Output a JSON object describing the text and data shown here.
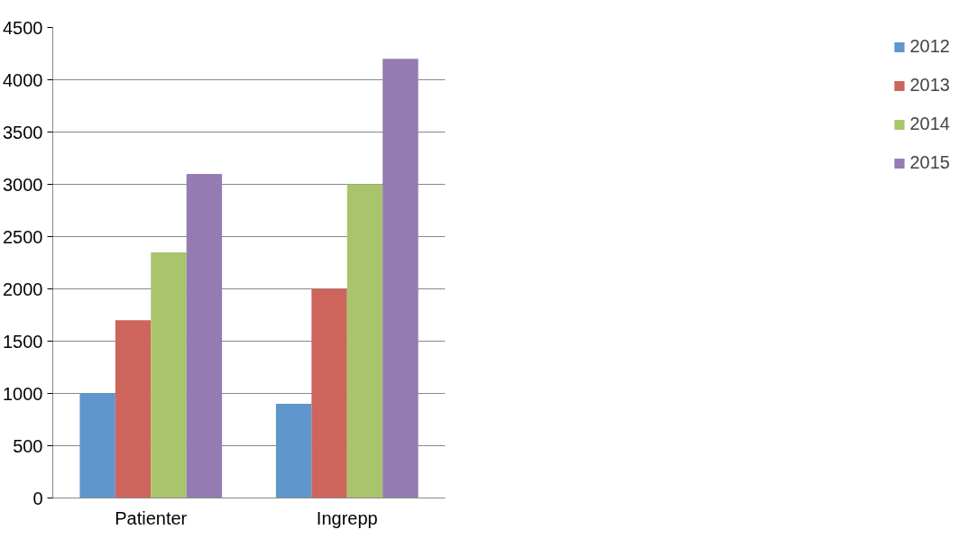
{
  "chart_data": {
    "type": "bar",
    "categories": [
      "Patienter",
      "Ingrepp"
    ],
    "series": [
      {
        "name": "2012",
        "color": "#5f96cc",
        "values": [
          1000,
          900
        ]
      },
      {
        "name": "2013",
        "color": "#cd655d",
        "values": [
          1700,
          2000
        ]
      },
      {
        "name": "2014",
        "color": "#a9c46b",
        "values": [
          2350,
          3000
        ]
      },
      {
        "name": "2015",
        "color": "#947cb2",
        "values": [
          3100,
          4200
        ]
      }
    ],
    "ylim": [
      0,
      4500
    ],
    "yticks": [
      0,
      500,
      1000,
      1500,
      2000,
      2500,
      3000,
      3500,
      4000,
      4500
    ],
    "grid": "y",
    "legend": "right"
  }
}
